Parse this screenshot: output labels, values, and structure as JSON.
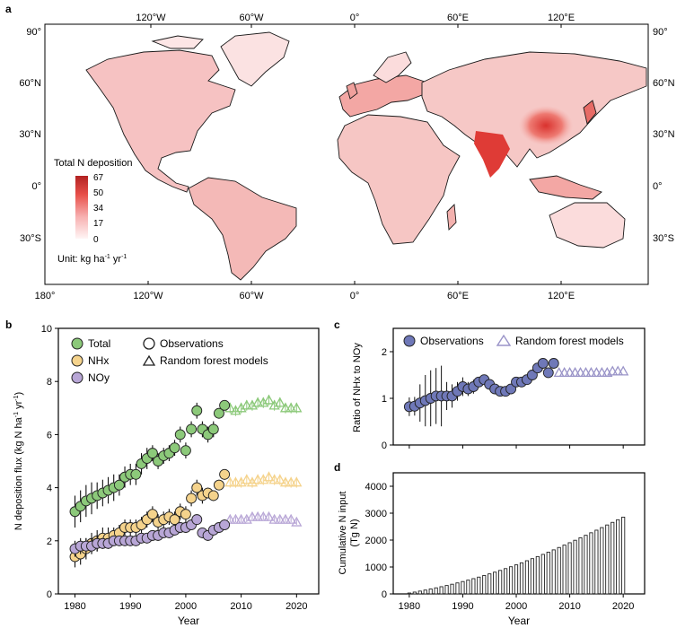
{
  "panel_labels": {
    "a": "a",
    "b": "b",
    "c": "c",
    "d": "d"
  },
  "map": {
    "top_ticks": [
      "120°W",
      "60°W",
      "0°",
      "60°E",
      "120°E"
    ],
    "bottom_ticks": [
      "180°",
      "120°W",
      "60°W",
      "0°",
      "60°E",
      "120°E"
    ],
    "lat_left": [
      "90°",
      "60°N",
      "30°N",
      "0°",
      "30°S"
    ],
    "lat_right": [
      "90°",
      "60°N",
      "30°N",
      "0°",
      "30°S"
    ],
    "legend_title": "Total N deposition",
    "legend_ticks": [
      "67",
      "50",
      "34",
      "17",
      "0"
    ],
    "unit_prefix": "Unit: kg ha",
    "unit_exp1": "-1",
    "unit_mid": " yr",
    "unit_exp2": "-1",
    "colors": {
      "low": "#fde8e8",
      "mid": "#f08080",
      "high": "#c0392b",
      "ocean": "#ffffff"
    }
  },
  "chart_data": [
    {
      "panel": "b",
      "type": "scatter",
      "xlabel": "Year",
      "ylabel": "N deposition flux (kg N ha",
      "ylabel_sup1": "-1",
      "ylabel_mid": " yr",
      "ylabel_sup2": "-1",
      "ylabel_end": ")",
      "xlim": [
        1977,
        2024
      ],
      "ylim": [
        0,
        10
      ],
      "xticks": [
        "1980",
        "1990",
        "2000",
        "2010",
        "2020"
      ],
      "yticks": [
        "0",
        "2",
        "4",
        "6",
        "8",
        "10"
      ],
      "legend_series": [
        "Total",
        "NHx",
        "NOy"
      ],
      "legend_kinds": [
        "Observations",
        "Random forest models"
      ],
      "series": [
        {
          "name": "Total",
          "color": "#8cc97a",
          "edge": "#222222",
          "obs_x": [
            1980,
            1981,
            1982,
            1983,
            1984,
            1985,
            1986,
            1987,
            1988,
            1989,
            1990,
            1991,
            1992,
            1993,
            1994,
            1995,
            1996,
            1997,
            1998,
            1999,
            2000,
            2001,
            2002,
            2003,
            2004,
            2005,
            2006,
            2007
          ],
          "obs_y": [
            3.1,
            3.3,
            3.5,
            3.6,
            3.7,
            3.8,
            3.9,
            4.0,
            4.1,
            4.4,
            4.5,
            4.5,
            4.9,
            5.1,
            5.3,
            5.0,
            5.2,
            5.3,
            5.5,
            6.0,
            5.4,
            6.2,
            6.9,
            6.2,
            6.0,
            6.2,
            6.8,
            7.1
          ],
          "obs_err": [
            0.6,
            0.6,
            0.6,
            0.6,
            0.5,
            0.5,
            0.5,
            0.5,
            0.4,
            0.4,
            0.4,
            0.4,
            0.4,
            0.4,
            0.3,
            0.3,
            0.3,
            0.3,
            0.3,
            0.3,
            0.3,
            0.3,
            0.3,
            0.3,
            0.3,
            0.3,
            0.2,
            0.2
          ],
          "model_x": [
            2008,
            2009,
            2010,
            2011,
            2012,
            2013,
            2014,
            2015,
            2016,
            2017,
            2018,
            2019,
            2020
          ],
          "model_y": [
            7.0,
            6.9,
            7.0,
            7.1,
            7.1,
            7.2,
            7.2,
            7.3,
            7.1,
            7.2,
            7.0,
            7.0,
            7.0
          ],
          "model_err": [
            0.2,
            0.2,
            0.2,
            0.2,
            0.2,
            0.2,
            0.2,
            0.2,
            0.2,
            0.2,
            0.2,
            0.2,
            0.2
          ]
        },
        {
          "name": "NHx",
          "color": "#f5d38c",
          "edge": "#222222",
          "obs_x": [
            1980,
            1981,
            1982,
            1983,
            1984,
            1985,
            1986,
            1987,
            1988,
            1989,
            1990,
            1991,
            1992,
            1993,
            1994,
            1995,
            1996,
            1997,
            1998,
            1999,
            2000,
            2001,
            2002,
            2003,
            2004,
            2005,
            2006,
            2007
          ],
          "obs_y": [
            1.4,
            1.5,
            1.7,
            1.9,
            2.0,
            2.1,
            2.1,
            2.2,
            2.3,
            2.5,
            2.5,
            2.5,
            2.6,
            2.8,
            3.0,
            2.7,
            2.8,
            2.9,
            2.8,
            3.1,
            3.0,
            3.6,
            4.0,
            3.7,
            3.8,
            3.7,
            4.1,
            4.5
          ],
          "obs_err": [
            0.4,
            0.4,
            0.4,
            0.4,
            0.4,
            0.4,
            0.4,
            0.3,
            0.3,
            0.3,
            0.3,
            0.3,
            0.3,
            0.3,
            0.3,
            0.3,
            0.3,
            0.3,
            0.3,
            0.3,
            0.3,
            0.3,
            0.3,
            0.3,
            0.2,
            0.2,
            0.2,
            0.2
          ],
          "model_x": [
            2008,
            2009,
            2010,
            2011,
            2012,
            2013,
            2014,
            2015,
            2016,
            2017,
            2018,
            2019,
            2020
          ],
          "model_y": [
            4.2,
            4.2,
            4.2,
            4.3,
            4.2,
            4.3,
            4.3,
            4.4,
            4.3,
            4.3,
            4.2,
            4.2,
            4.2
          ],
          "model_err": [
            0.2,
            0.2,
            0.2,
            0.2,
            0.2,
            0.2,
            0.2,
            0.2,
            0.2,
            0.2,
            0.2,
            0.2,
            0.2
          ]
        },
        {
          "name": "NOy",
          "color": "#b8a6d6",
          "edge": "#222222",
          "obs_x": [
            1980,
            1981,
            1982,
            1983,
            1984,
            1985,
            1986,
            1987,
            1988,
            1989,
            1990,
            1991,
            1992,
            1993,
            1994,
            1995,
            1996,
            1997,
            1998,
            1999,
            2000,
            2001,
            2002,
            2003,
            2004,
            2005,
            2006,
            2007
          ],
          "obs_y": [
            1.7,
            1.8,
            1.8,
            1.8,
            1.9,
            1.9,
            1.9,
            2.0,
            2.0,
            2.0,
            2.0,
            2.0,
            2.1,
            2.1,
            2.2,
            2.2,
            2.3,
            2.3,
            2.4,
            2.5,
            2.5,
            2.6,
            2.8,
            2.3,
            2.2,
            2.4,
            2.5,
            2.6
          ],
          "obs_err": [
            0.3,
            0.3,
            0.3,
            0.3,
            0.3,
            0.2,
            0.2,
            0.2,
            0.2,
            0.2,
            0.2,
            0.2,
            0.2,
            0.2,
            0.2,
            0.2,
            0.2,
            0.2,
            0.2,
            0.2,
            0.2,
            0.2,
            0.2,
            0.2,
            0.2,
            0.2,
            0.2,
            0.2
          ],
          "model_x": [
            2008,
            2009,
            2010,
            2011,
            2012,
            2013,
            2014,
            2015,
            2016,
            2017,
            2018,
            2019,
            2020
          ],
          "model_y": [
            2.8,
            2.8,
            2.8,
            2.8,
            2.9,
            2.9,
            2.9,
            2.9,
            2.8,
            2.8,
            2.8,
            2.8,
            2.7
          ],
          "model_err": [
            0.1,
            0.1,
            0.1,
            0.1,
            0.1,
            0.1,
            0.1,
            0.1,
            0.1,
            0.1,
            0.1,
            0.1,
            0.1
          ]
        }
      ]
    },
    {
      "panel": "c",
      "type": "scatter",
      "xlabel": "",
      "ylabel": "Ratio of NHx to NOy",
      "xlim": [
        1977,
        2024
      ],
      "ylim": [
        0,
        2.5
      ],
      "yticks": [
        "0",
        "1",
        "2"
      ],
      "legend": [
        "Observations",
        "Random forest models"
      ],
      "series": [
        {
          "name": "Observations",
          "color": "#6f78b8",
          "x": [
            1980,
            1981,
            1982,
            1983,
            1984,
            1985,
            1986,
            1987,
            1988,
            1989,
            1990,
            1991,
            1992,
            1993,
            1994,
            1995,
            1996,
            1997,
            1998,
            1999,
            2000,
            2001,
            2002,
            2003,
            2004,
            2005,
            2006,
            2007
          ],
          "y": [
            0.82,
            0.83,
            0.9,
            0.95,
            1.0,
            1.05,
            1.05,
            1.05,
            1.05,
            1.15,
            1.25,
            1.2,
            1.25,
            1.35,
            1.4,
            1.3,
            1.2,
            1.15,
            1.15,
            1.2,
            1.35,
            1.35,
            1.4,
            1.5,
            1.65,
            1.75,
            1.55,
            1.75
          ],
          "err": [
            0.2,
            0.2,
            0.4,
            0.55,
            0.6,
            0.6,
            0.65,
            0.3,
            0.25,
            0.2,
            0.2,
            0.15,
            0.15,
            0.1,
            0.1,
            0.1,
            0.1,
            0.1,
            0.1,
            0.1,
            0.1,
            0.1,
            0.1,
            0.1,
            0.1,
            0.1,
            0.1,
            0.1
          ]
        },
        {
          "name": "Random forest models",
          "color": "#9a94c8",
          "x": [
            2008,
            2009,
            2010,
            2011,
            2012,
            2013,
            2014,
            2015,
            2016,
            2017,
            2018,
            2019,
            2020
          ],
          "y": [
            1.55,
            1.55,
            1.55,
            1.55,
            1.55,
            1.55,
            1.55,
            1.55,
            1.55,
            1.55,
            1.58,
            1.58,
            1.58
          ]
        }
      ]
    },
    {
      "panel": "d",
      "type": "bar",
      "xlabel": "Year",
      "ylabel": "Cumulative N input",
      "ylabel_unit": "(Tg N)",
      "xlim": [
        1977,
        2024
      ],
      "ylim": [
        0,
        4500
      ],
      "xticks": [
        "1980",
        "1990",
        "2000",
        "2010",
        "2020"
      ],
      "yticks": [
        "0",
        "1000",
        "2000",
        "3000",
        "4000"
      ],
      "categories": [
        1980,
        1981,
        1982,
        1983,
        1984,
        1985,
        1986,
        1987,
        1988,
        1989,
        1990,
        1991,
        1992,
        1993,
        1994,
        1995,
        1996,
        1997,
        1998,
        1999,
        2000,
        2001,
        2002,
        2003,
        2004,
        2005,
        2006,
        2007,
        2008,
        2009,
        2010,
        2011,
        2012,
        2013,
        2014,
        2015,
        2016,
        2017,
        2018,
        2019,
        2020
      ],
      "values": [
        33,
        68,
        105,
        143,
        183,
        225,
        268,
        313,
        360,
        409,
        460,
        512,
        567,
        624,
        684,
        745,
        808,
        873,
        940,
        1010,
        1080,
        1155,
        1233,
        1310,
        1388,
        1468,
        1551,
        1637,
        1725,
        1813,
        1902,
        1993,
        2085,
        2178,
        2272,
        2368,
        2464,
        2561,
        2658,
        2755,
        2852
      ]
    }
  ]
}
